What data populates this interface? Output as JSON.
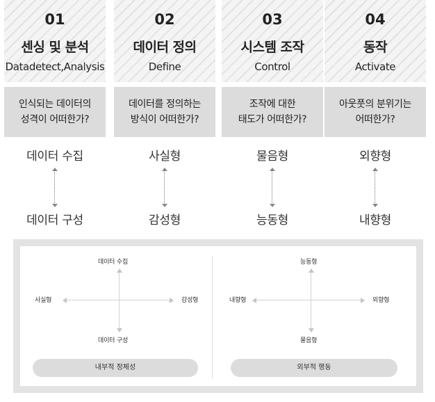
{
  "columns": [
    {
      "number": "01",
      "title": "센싱 및 분석",
      "subtitle": "Datadetect,Analysis",
      "question_line1": "인식되는 데이터의",
      "question_line2": "성격이 어떠한가?",
      "term_top": "데이터 수집",
      "term_bottom": "데이터 구성"
    },
    {
      "number": "02",
      "title": "데이터 정의",
      "subtitle": "Define",
      "question_line1": "데이터를 정의하는",
      "question_line2": "방식이 어떠한가?",
      "term_top": "사실형",
      "term_bottom": "감성형"
    },
    {
      "number": "03",
      "title": "시스템 조작",
      "subtitle": "Control",
      "question_line1": "조작에 대한",
      "question_line2": "태도가 어떠한가?",
      "term_top": "물음형",
      "term_bottom": "능동형"
    },
    {
      "number": "04",
      "title": "동작",
      "subtitle": "Activate",
      "question_line1": "아웃풋의 분위기는",
      "question_line2": "어떠한가?",
      "term_top": "외향형",
      "term_bottom": "내향형"
    }
  ],
  "diagrams": {
    "left": {
      "top": "데이터 수집",
      "bottom": "데이터 구성",
      "left": "사실형",
      "right": "감성형",
      "caption": "내부적 정체성"
    },
    "right": {
      "top": "능동형",
      "bottom": "물음형",
      "left": "내향형",
      "right": "외향형",
      "caption": "외부적 행동"
    }
  },
  "colors": {
    "header_bg": "#f4f4f4",
    "stripe": "#e2e2e2",
    "question_bg": "#dcdcdc",
    "panel_bg": "#e3e3e3",
    "pill_bg": "#dcdcdc"
  }
}
